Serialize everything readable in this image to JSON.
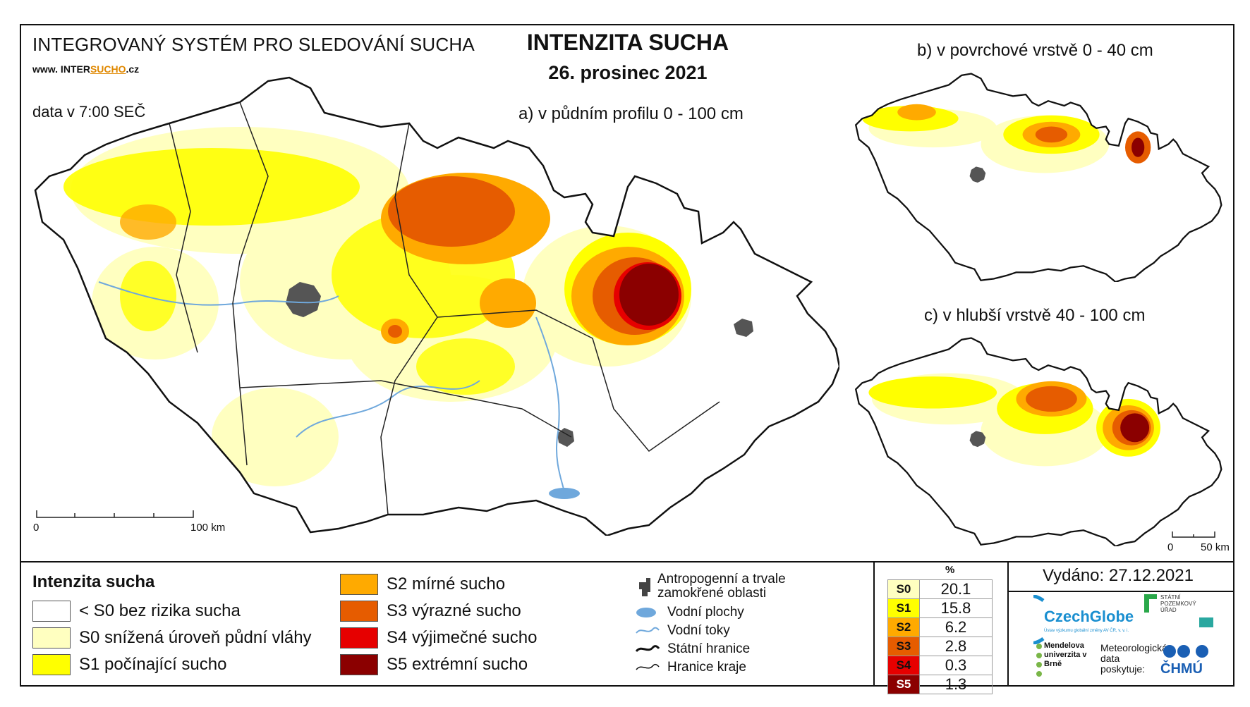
{
  "header": {
    "system_name": "INTEGROVANÝ SYSTÉM PRO SLEDOVÁNÍ SUCHA",
    "url_prefix": "www. INTER",
    "url_highlight": "SUCHO",
    "url_suffix": ".cz",
    "data_time": "data v 7:00 SEČ",
    "title": "INTENZITA SUCHA",
    "date": "26. prosinec 2021"
  },
  "maps": {
    "a_label": "a) v půdním profilu 0 - 100 cm",
    "b_label": "b) v povrchové vrstvě 0 - 40 cm",
    "c_label": "c) v hlubší vrstvě 40 - 100 cm",
    "scale_main_zero": "0",
    "scale_main_end": "100 km",
    "scale_small_zero": "0",
    "scale_small_end": "50 km"
  },
  "legend": {
    "title": "Intenzita sucha",
    "classes": [
      {
        "label": "< S0 bez rizika sucha",
        "color": "#ffffff"
      },
      {
        "label": "S0 snížená úroveň půdní vláhy",
        "color": "#ffffc0"
      },
      {
        "label": "S1 počínající sucho",
        "color": "#ffff00"
      },
      {
        "label": "S2 mírné sucho",
        "color": "#ffaa00"
      },
      {
        "label": "S3 výrazné sucho",
        "color": "#e65c00"
      },
      {
        "label": "S4 výjimečné sucho",
        "color": "#e60000"
      },
      {
        "label": "S5 extrémní sucho",
        "color": "#8b0000"
      }
    ],
    "aux": {
      "anthropogenic": "Antropogenní a trvale zamokřené oblasti",
      "water_bodies": "Vodní plochy",
      "rivers": "Vodní toky",
      "state_border": "Státní hranice",
      "region_border": "Hranice kraje"
    }
  },
  "percent_table": {
    "header": "%",
    "rows": [
      {
        "label": "S0",
        "value": "20.1",
        "color": "#ffffc0"
      },
      {
        "label": "S1",
        "value": "15.8",
        "color": "#ffff00"
      },
      {
        "label": "S2",
        "value": "6.2",
        "color": "#ffaa00"
      },
      {
        "label": "S3",
        "value": "2.8",
        "color": "#e65c00"
      },
      {
        "label": "S4",
        "value": "0.3",
        "color": "#e60000"
      },
      {
        "label": "S5",
        "value": "1.3",
        "color": "#8b0000"
      }
    ]
  },
  "issued": "Vydáno: 27.12.2021",
  "logos": {
    "czechglobe": "CzechGlobe",
    "czechglobe_sub": "Ústav výzkumu globální změny AV ČR, v. v. i.",
    "spu": "STÁTNÍ POZEMKOVÝ ÚŘAD",
    "mendel": "Mendelova univerzita v Brně",
    "meteo": "Meteorologická data poskytuje:",
    "chmu": "ČHMÚ"
  }
}
